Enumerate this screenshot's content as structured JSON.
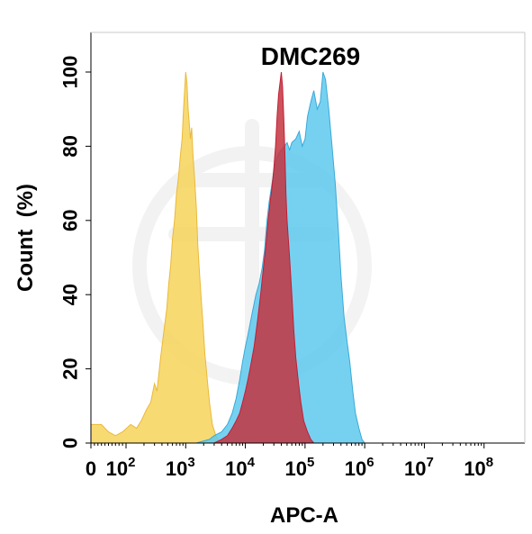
{
  "chart_data": {
    "type": "area",
    "title": "DMC269",
    "xlabel": "APC-A",
    "ylabel": "Count  (%)",
    "xscale": "log",
    "xlim": [
      0,
      100000000
    ],
    "ylim": [
      0,
      100
    ],
    "grid": false,
    "legend": "none",
    "xticks": [
      {
        "value": 0,
        "base": "0",
        "exp": ""
      },
      {
        "value": 100,
        "base": "10",
        "exp": "2"
      },
      {
        "value": 1000,
        "base": "10",
        "exp": "3"
      },
      {
        "value": 10000,
        "base": "10",
        "exp": "4"
      },
      {
        "value": 100000,
        "base": "10",
        "exp": "5"
      },
      {
        "value": 1000000,
        "base": "10",
        "exp": "6"
      },
      {
        "value": 10000000,
        "base": "10",
        "exp": "7"
      },
      {
        "value": 100000000,
        "base": "10",
        "exp": "8"
      }
    ],
    "yticks": [
      "0",
      "20",
      "40",
      "60",
      "80",
      "100"
    ],
    "series": [
      {
        "color": "#f7d35a",
        "stroke": "#e9b93a",
        "points": [
          [
            0,
            5
          ],
          [
            30,
            5
          ],
          [
            50,
            3
          ],
          [
            70,
            2
          ],
          [
            90,
            3
          ],
          [
            120,
            5
          ],
          [
            150,
            4
          ],
          [
            180,
            6
          ],
          [
            220,
            9
          ],
          [
            260,
            11
          ],
          [
            300,
            16
          ],
          [
            330,
            14
          ],
          [
            380,
            23
          ],
          [
            430,
            30
          ],
          [
            480,
            36
          ],
          [
            520,
            43
          ],
          [
            560,
            48
          ],
          [
            600,
            55
          ],
          [
            650,
            60
          ],
          [
            700,
            67
          ],
          [
            760,
            72
          ],
          [
            820,
            78
          ],
          [
            870,
            82
          ],
          [
            920,
            90
          ],
          [
            960,
            95
          ],
          [
            1000,
            100
          ],
          [
            1050,
            97
          ],
          [
            1100,
            90
          ],
          [
            1150,
            86
          ],
          [
            1200,
            82
          ],
          [
            1260,
            85
          ],
          [
            1320,
            78
          ],
          [
            1400,
            72
          ],
          [
            1500,
            64
          ],
          [
            1600,
            53
          ],
          [
            1700,
            46
          ],
          [
            1800,
            40
          ],
          [
            1950,
            32
          ],
          [
            2100,
            24
          ],
          [
            2300,
            17
          ],
          [
            2500,
            11
          ],
          [
            2800,
            5
          ],
          [
            3200,
            2
          ],
          [
            3800,
            0
          ],
          [
            100000000,
            0
          ]
        ]
      },
      {
        "color": "#5ec9ee",
        "stroke": "#3aa9d8",
        "points": [
          [
            0,
            0
          ],
          [
            1500,
            0
          ],
          [
            2500,
            1
          ],
          [
            3000,
            2
          ],
          [
            4000,
            3
          ],
          [
            5000,
            5
          ],
          [
            6000,
            8
          ],
          [
            7000,
            12
          ],
          [
            8000,
            17
          ],
          [
            9000,
            22
          ],
          [
            10000,
            26
          ],
          [
            11000,
            29
          ],
          [
            13000,
            35
          ],
          [
            15000,
            40
          ],
          [
            17000,
            43
          ],
          [
            19000,
            47
          ],
          [
            21000,
            52
          ],
          [
            23000,
            60
          ],
          [
            25000,
            65
          ],
          [
            28000,
            70
          ],
          [
            32000,
            76
          ],
          [
            36000,
            78
          ],
          [
            40000,
            79
          ],
          [
            45000,
            80
          ],
          [
            50000,
            81
          ],
          [
            55000,
            79
          ],
          [
            60000,
            81
          ],
          [
            70000,
            82
          ],
          [
            80000,
            84
          ],
          [
            90000,
            80
          ],
          [
            100000,
            82
          ],
          [
            110000,
            88
          ],
          [
            125000,
            92
          ],
          [
            140000,
            95
          ],
          [
            160000,
            90
          ],
          [
            180000,
            92
          ],
          [
            200000,
            100
          ],
          [
            220000,
            98
          ],
          [
            250000,
            90
          ],
          [
            280000,
            81
          ],
          [
            320000,
            70
          ],
          [
            360000,
            58
          ],
          [
            400000,
            45
          ],
          [
            450000,
            34
          ],
          [
            500000,
            28
          ],
          [
            560000,
            22
          ],
          [
            630000,
            14
          ],
          [
            700000,
            8
          ],
          [
            800000,
            4
          ],
          [
            900000,
            1
          ],
          [
            1000000,
            0
          ],
          [
            100000000,
            0
          ]
        ]
      },
      {
        "color": "#c4343f",
        "stroke": "#c01f35",
        "points": [
          [
            0,
            0
          ],
          [
            3000,
            0
          ],
          [
            4000,
            1
          ],
          [
            5000,
            2
          ],
          [
            6000,
            4
          ],
          [
            7000,
            6
          ],
          [
            8000,
            8
          ],
          [
            9000,
            11
          ],
          [
            10000,
            14
          ],
          [
            11000,
            17
          ],
          [
            12000,
            20
          ],
          [
            14000,
            26
          ],
          [
            16000,
            33
          ],
          [
            18000,
            40
          ],
          [
            20000,
            47
          ],
          [
            22000,
            53
          ],
          [
            24000,
            60
          ],
          [
            26000,
            65
          ],
          [
            28000,
            69
          ],
          [
            30000,
            74
          ],
          [
            32000,
            80
          ],
          [
            34000,
            88
          ],
          [
            36000,
            94
          ],
          [
            38000,
            97
          ],
          [
            40000,
            100
          ],
          [
            42000,
            96
          ],
          [
            44000,
            88
          ],
          [
            46000,
            78
          ],
          [
            48000,
            67
          ],
          [
            50000,
            60
          ],
          [
            55000,
            50
          ],
          [
            60000,
            40
          ],
          [
            65000,
            30
          ],
          [
            70000,
            23
          ],
          [
            78000,
            16
          ],
          [
            85000,
            11
          ],
          [
            95000,
            6
          ],
          [
            110000,
            3
          ],
          [
            125000,
            1
          ],
          [
            140000,
            0
          ],
          [
            100000000,
            0
          ]
        ]
      }
    ]
  }
}
